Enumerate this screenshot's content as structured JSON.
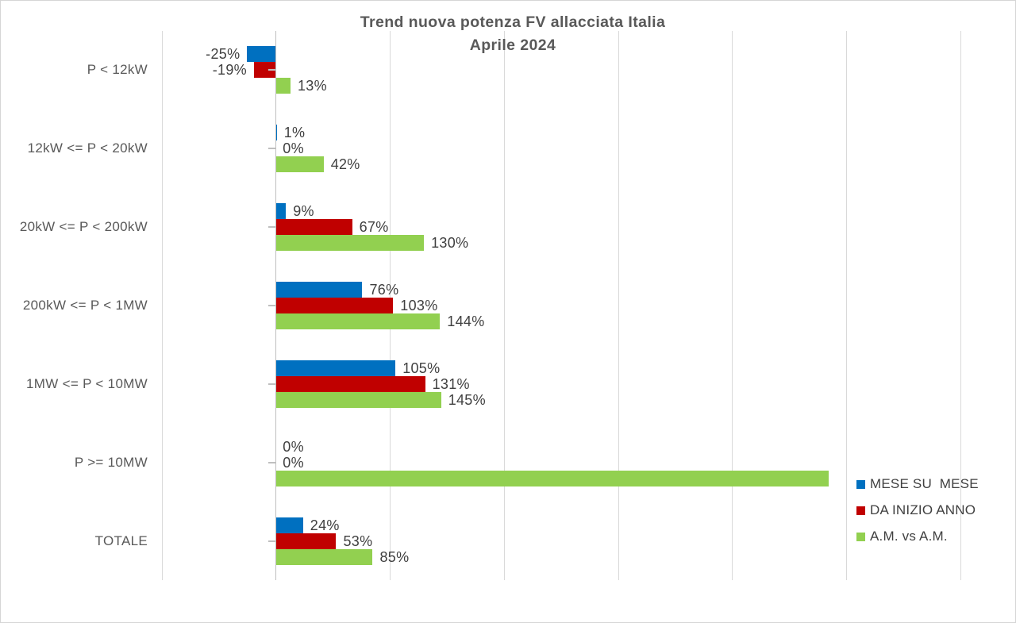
{
  "chart_data": {
    "type": "bar",
    "orientation": "horizontal",
    "title": "Trend nuova potenza FV allacciata Italia",
    "subtitle": "Aprile 2024",
    "categories": [
      "P < 12kW",
      "12kW <= P < 20kW",
      "20kW <= P < 200kW",
      "200kW <= P < 1MW",
      "1MW <= P < 10MW",
      "P >= 10MW",
      "TOTALE"
    ],
    "series": [
      {
        "name": "MESE SU  MESE",
        "color": "#0070C0",
        "values": [
          -25,
          1,
          9,
          76,
          105,
          0,
          24
        ],
        "labels": [
          "-25%",
          "1%",
          "9%",
          "76%",
          "105%",
          "0%",
          "24%"
        ]
      },
      {
        "name": "DA INIZIO ANNO",
        "color": "#C00000",
        "values": [
          -19,
          0,
          67,
          103,
          131,
          0,
          53
        ],
        "labels": [
          "-19%",
          "0%",
          "67%",
          "103%",
          "131%",
          "0%",
          "53%"
        ]
      },
      {
        "name": "A.M. vs A.M.",
        "color": "#92D050",
        "values": [
          13,
          42,
          130,
          144,
          145,
          485,
          85
        ],
        "labels": [
          "13%",
          "42%",
          "130%",
          "144%",
          "145%",
          "",
          "85%"
        ]
      }
    ],
    "x_axis": {
      "gridline_values": [
        -100,
        0,
        100,
        200,
        300,
        400,
        500,
        600
      ],
      "gridline_step": 100,
      "grid": true,
      "tick_labels_visible": false
    },
    "legend_position": "inside-bottom-right",
    "value_suffix": "%",
    "colors": {
      "gridline": "#D9D9D9",
      "axis": "#BFBFBF",
      "title": "#595959",
      "category_label": "#595959",
      "value_label": "#3F3F3F",
      "legend_label": "#404040",
      "background": "#FFFFFF",
      "border": "#D5D5D5"
    }
  }
}
